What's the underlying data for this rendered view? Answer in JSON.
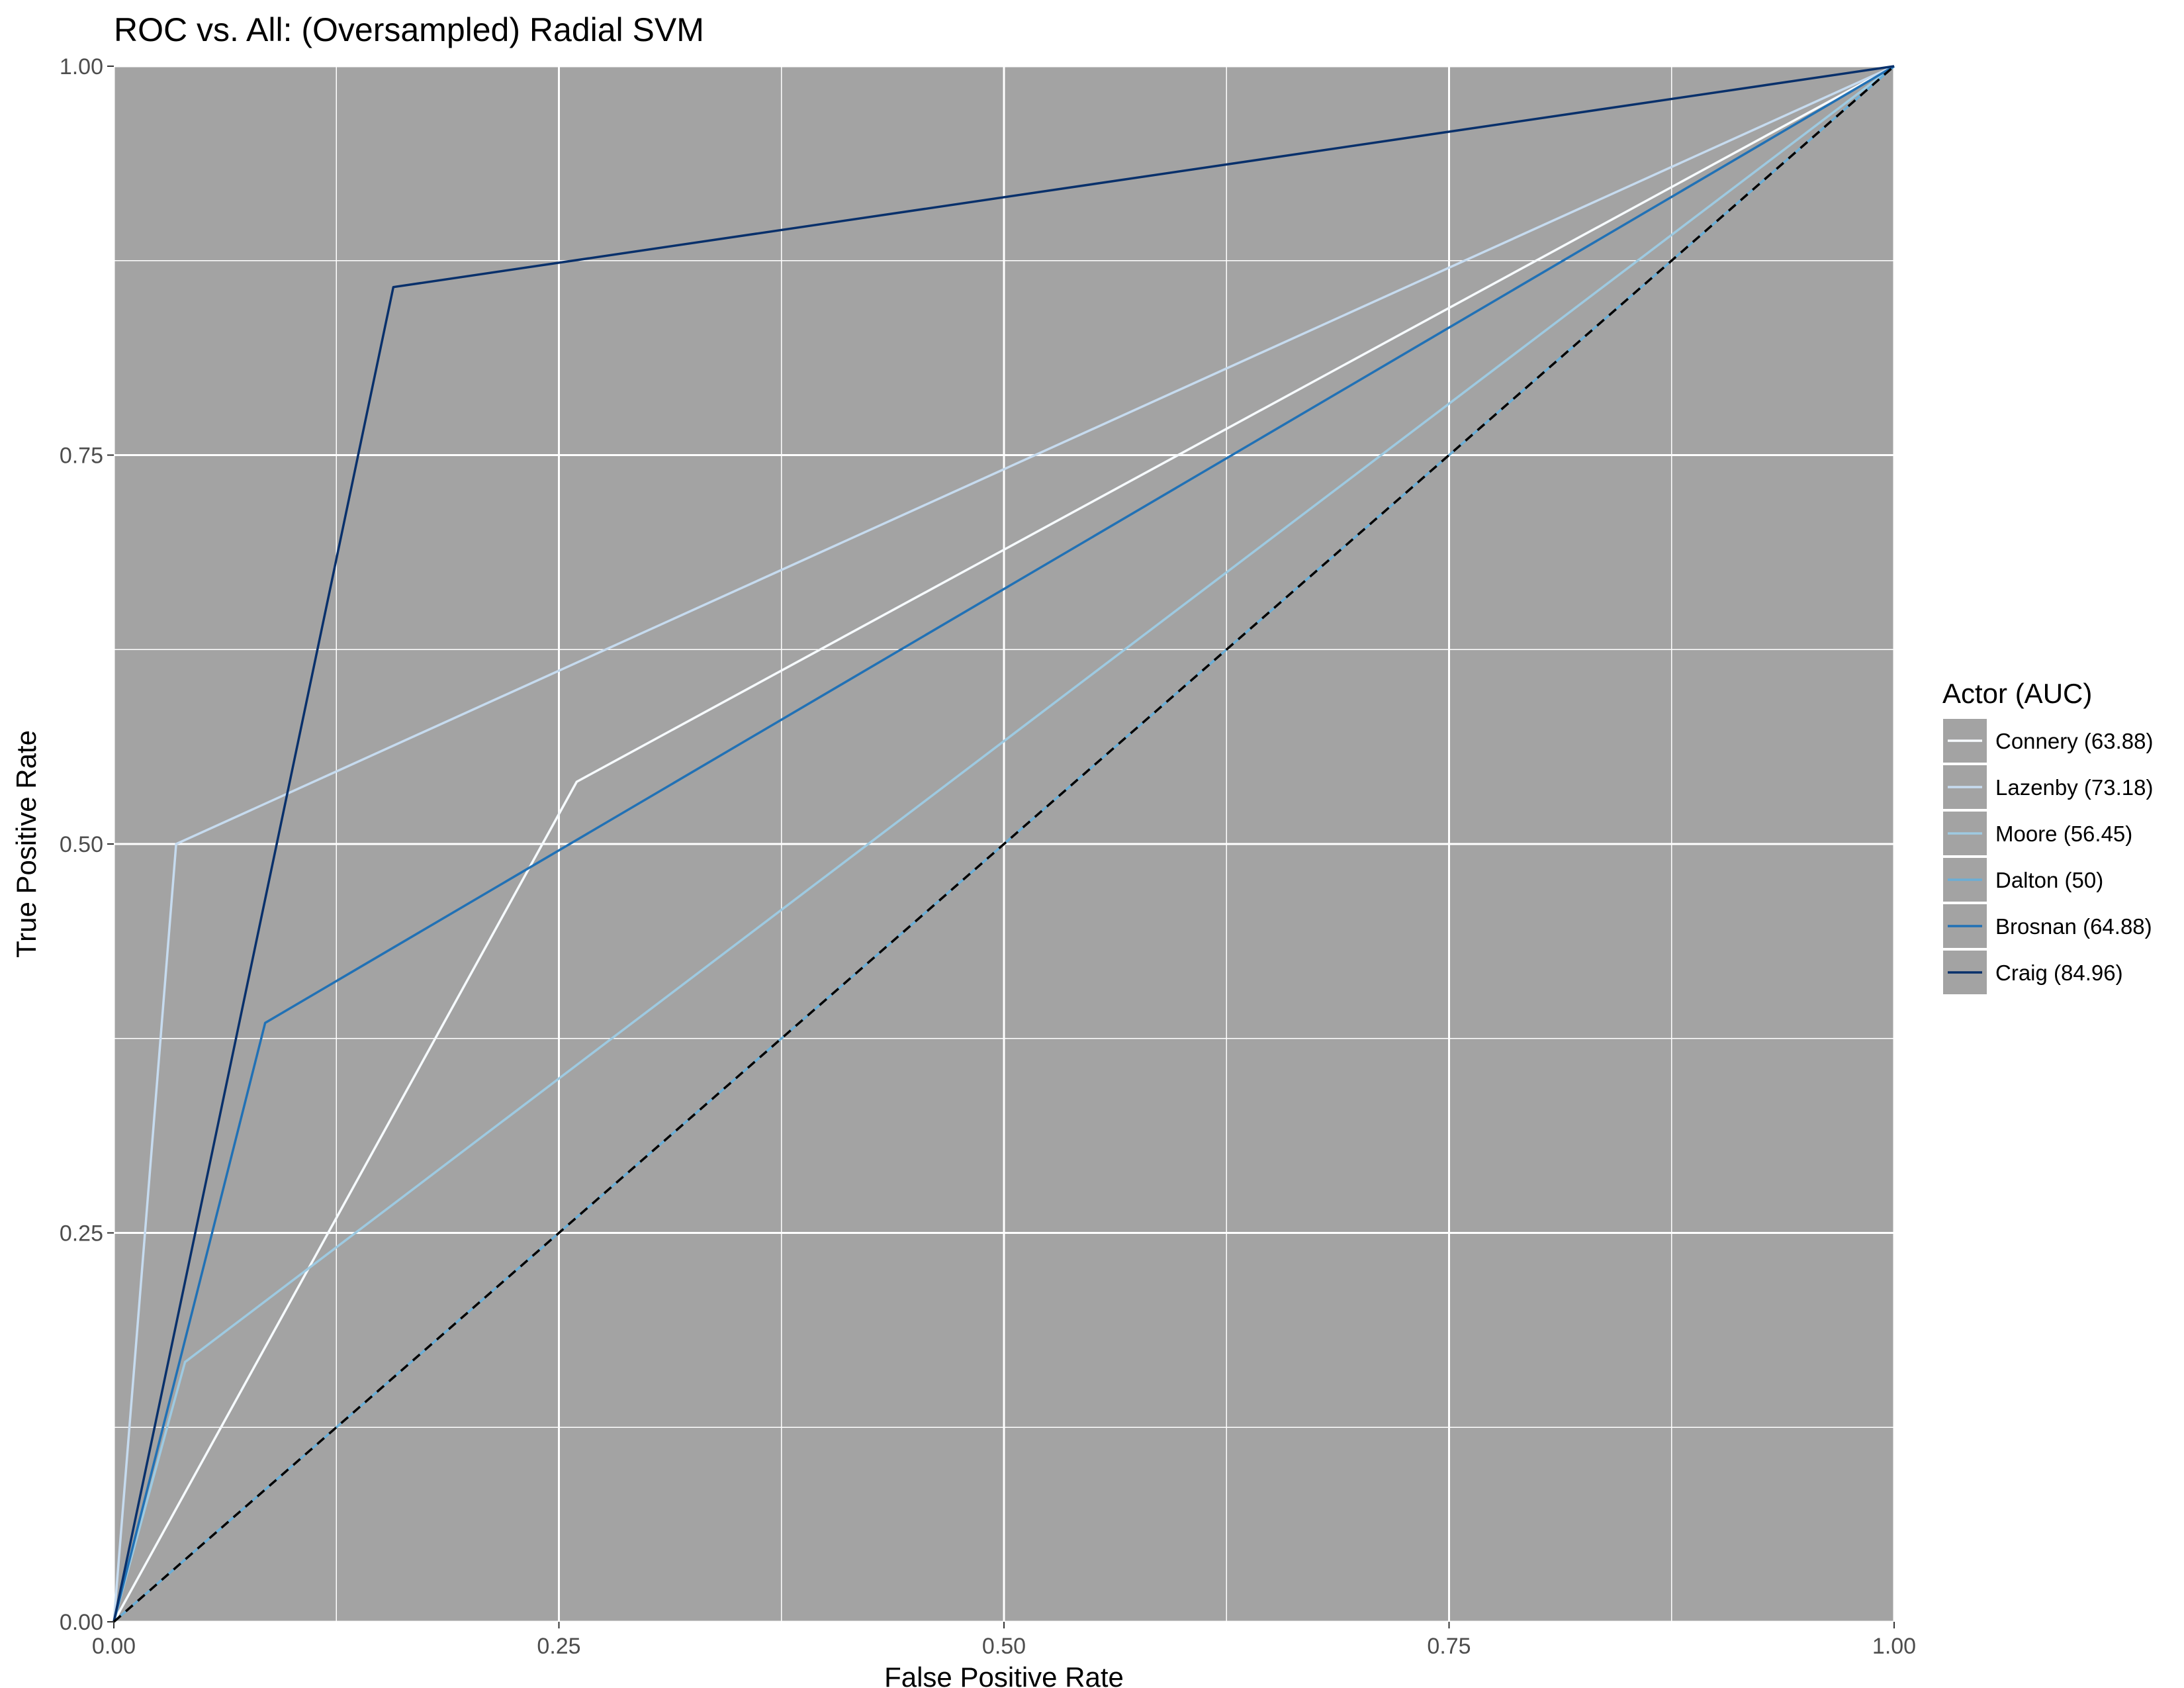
{
  "chart_data": {
    "type": "line",
    "title": "ROC vs. All: (Oversampled) Radial SVM",
    "xlabel": "False Positive Rate",
    "ylabel": "True Positive Rate",
    "xlim": [
      0,
      1
    ],
    "ylim": [
      0,
      1
    ],
    "xticks": [
      "0.00",
      "0.25",
      "0.50",
      "0.75",
      "1.00"
    ],
    "yticks": [
      "0.00",
      "0.25",
      "0.50",
      "0.75",
      "1.00"
    ],
    "grid": true,
    "legend_title": "Actor (AUC)",
    "legend_position": "right",
    "background_color": "#a3a3a3",
    "series": [
      {
        "name": "Connery (63.88)",
        "color": "#f7fbff",
        "points": [
          [
            0,
            0
          ],
          [
            0.26,
            0.54
          ],
          [
            1,
            1
          ]
        ]
      },
      {
        "name": "Lazenby (73.18)",
        "color": "#c6dbef",
        "points": [
          [
            0,
            0
          ],
          [
            0.035,
            0.5
          ],
          [
            1,
            1
          ]
        ]
      },
      {
        "name": "Moore (56.45)",
        "color": "#9ecae1",
        "points": [
          [
            0,
            0
          ],
          [
            0.04,
            0.167
          ],
          [
            1,
            1
          ]
        ]
      },
      {
        "name": "Dalton (50)",
        "color": "#6baed6",
        "points": [
          [
            0,
            0
          ],
          [
            1,
            1
          ]
        ]
      },
      {
        "name": "Brosnan (64.88)",
        "color": "#2171b5",
        "points": [
          [
            0,
            0
          ],
          [
            0.085,
            0.385
          ],
          [
            1,
            1
          ]
        ]
      },
      {
        "name": "Craig (84.96)",
        "color": "#08306b",
        "points": [
          [
            0,
            0
          ],
          [
            0.157,
            0.858
          ],
          [
            1,
            1
          ]
        ]
      }
    ],
    "reference_line": {
      "name": "diagonal",
      "color": "#000000",
      "dash": "dashed",
      "points": [
        [
          0,
          0
        ],
        [
          1,
          1
        ]
      ]
    }
  }
}
